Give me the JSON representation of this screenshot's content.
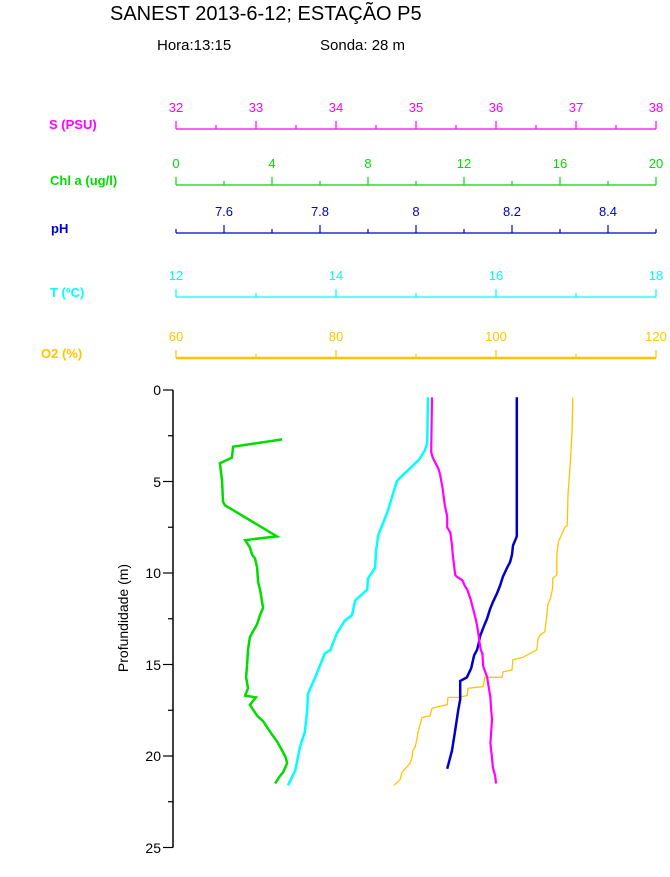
{
  "header": {
    "title": "SANEST 2013-6-12; ESTAÇÃO P5",
    "time": "Hora:13:15",
    "sounding": "Sonda: 28 m"
  },
  "chart_data": {
    "type": "line",
    "title": "SANEST 2013-6-12; ESTAÇÃO P5",
    "subtitle_time": "Hora:13:15",
    "subtitle_sounding": "Sonda: 28 m",
    "orientation": "vertical-depth-profile",
    "grid": false,
    "y_axis": {
      "label": "Profundidade (m)",
      "min": 0,
      "max": 25,
      "major_tick": 5,
      "minor_tick": 2.5,
      "ticks": [
        0,
        5,
        10,
        15,
        20,
        25
      ],
      "direction": "down",
      "color": "#000000"
    },
    "x_axes": [
      {
        "id": "S",
        "label": "S (PSU)",
        "color": "#FF00FF",
        "min": 32,
        "max": 38,
        "major_tick": 1,
        "minor_tick": 0.5,
        "ticks": [
          32,
          33,
          34,
          35,
          36,
          37,
          38
        ]
      },
      {
        "id": "Chl",
        "label": "Chl a (ug/l)",
        "color": "#00DC00",
        "min": 0,
        "max": 20,
        "major_tick": 4,
        "minor_tick": 2,
        "ticks": [
          0,
          4,
          8,
          12,
          16,
          20
        ]
      },
      {
        "id": "pH",
        "label": "pH",
        "color": "#0000CD",
        "min": 7.5,
        "max": 8.5,
        "major_tick": 0.2,
        "minor_tick": 0.1,
        "ticks": [
          7.6,
          7.8,
          8,
          8.2,
          8.4
        ]
      },
      {
        "id": "T",
        "label": "T (ºC)",
        "color": "#00FFFF",
        "min": 12,
        "max": 18,
        "major_tick": 2,
        "minor_tick": 1,
        "ticks": [
          12,
          14,
          16,
          18
        ]
      },
      {
        "id": "O2",
        "label": "O2 (%)",
        "color": "#FFC400",
        "min": 60,
        "max": 120,
        "major_tick": 20,
        "minor_tick": 10,
        "ticks": [
          60,
          80,
          100,
          120
        ]
      }
    ],
    "series": [
      {
        "name": "S (PSU)",
        "axis": "S",
        "color": "#FF00FF",
        "points": [
          [
            35.2,
            0.4
          ],
          [
            35.19,
            3.4
          ],
          [
            35.21,
            3.7
          ],
          [
            35.28,
            4.3
          ],
          [
            35.3,
            4.6
          ],
          [
            35.33,
            5.3
          ],
          [
            35.36,
            6.3
          ],
          [
            35.39,
            6.9
          ],
          [
            35.39,
            7.5
          ],
          [
            35.43,
            7.8
          ],
          [
            35.45,
            8.5
          ],
          [
            35.46,
            9.0
          ],
          [
            35.49,
            10.1
          ],
          [
            35.51,
            10.2
          ],
          [
            35.58,
            10.4
          ],
          [
            35.61,
            10.7
          ],
          [
            35.64,
            10.9
          ],
          [
            35.68,
            11.4
          ],
          [
            35.71,
            11.9
          ],
          [
            35.74,
            12.4
          ],
          [
            35.76,
            12.8
          ],
          [
            35.78,
            13.3
          ],
          [
            35.79,
            13.7
          ],
          [
            35.81,
            14.2
          ],
          [
            35.83,
            14.4
          ],
          [
            35.84,
            15.1
          ],
          [
            35.89,
            15.7
          ],
          [
            35.9,
            16.0
          ],
          [
            35.93,
            16.8
          ],
          [
            35.94,
            17.5
          ],
          [
            35.95,
            18.0
          ],
          [
            35.93,
            19.3
          ],
          [
            35.95,
            20.1
          ],
          [
            35.96,
            20.6
          ],
          [
            35.99,
            21.1
          ],
          [
            36.0,
            21.5
          ]
        ]
      },
      {
        "name": "Chl a (ug/l)",
        "axis": "Chl",
        "color": "#00DC00",
        "points": [
          [
            4.42,
            2.7
          ],
          [
            2.38,
            3.1
          ],
          [
            2.33,
            3.7
          ],
          [
            1.83,
            4.0
          ],
          [
            1.92,
            5.0
          ],
          [
            1.96,
            6.1
          ],
          [
            2.04,
            6.3
          ],
          [
            4.21,
            8.0
          ],
          [
            2.88,
            8.2
          ],
          [
            3.08,
            8.6
          ],
          [
            3.17,
            9.0
          ],
          [
            3.29,
            9.2
          ],
          [
            3.38,
            9.7
          ],
          [
            3.42,
            10.5
          ],
          [
            3.5,
            10.9
          ],
          [
            3.63,
            11.9
          ],
          [
            3.5,
            12.3
          ],
          [
            3.38,
            12.8
          ],
          [
            3.08,
            13.5
          ],
          [
            3.0,
            14.2
          ],
          [
            2.96,
            15.1
          ],
          [
            2.92,
            15.7
          ],
          [
            3.0,
            16.3
          ],
          [
            2.88,
            16.7
          ],
          [
            3.33,
            16.8
          ],
          [
            3.08,
            17.2
          ],
          [
            3.38,
            17.8
          ],
          [
            3.63,
            18.1
          ],
          [
            3.83,
            18.5
          ],
          [
            4.04,
            18.9
          ],
          [
            4.21,
            19.2
          ],
          [
            4.42,
            19.7
          ],
          [
            4.58,
            20.1
          ],
          [
            4.63,
            20.4
          ],
          [
            4.46,
            20.9
          ],
          [
            4.33,
            21.1
          ],
          [
            4.13,
            21.5
          ]
        ]
      },
      {
        "name": "pH",
        "axis": "pH",
        "color": "#0000CD",
        "points": [
          [
            8.21,
            0.4
          ],
          [
            8.21,
            8.0
          ],
          [
            8.202,
            8.5
          ],
          [
            8.2,
            9.0
          ],
          [
            8.196,
            9.4
          ],
          [
            8.19,
            9.7
          ],
          [
            8.181,
            10.2
          ],
          [
            8.175,
            10.7
          ],
          [
            8.169,
            11.1
          ],
          [
            8.16,
            11.6
          ],
          [
            8.154,
            12.0
          ],
          [
            8.148,
            12.5
          ],
          [
            8.14,
            13.0
          ],
          [
            8.133,
            13.5
          ],
          [
            8.131,
            13.8
          ],
          [
            8.127,
            14.2
          ],
          [
            8.121,
            14.5
          ],
          [
            8.115,
            15.2
          ],
          [
            8.106,
            15.7
          ],
          [
            8.092,
            15.9
          ],
          [
            8.092,
            16.9
          ],
          [
            8.088,
            17.5
          ],
          [
            8.081,
            18.7
          ],
          [
            8.075,
            19.7
          ],
          [
            8.065,
            20.7
          ]
        ]
      },
      {
        "name": "T (ºC)",
        "axis": "T",
        "color": "#00FFFF",
        "points": [
          [
            15.15,
            0.4
          ],
          [
            15.14,
            2.9
          ],
          [
            15.11,
            3.3
          ],
          [
            15.04,
            3.8
          ],
          [
            14.8,
            4.8
          ],
          [
            14.76,
            5.0
          ],
          [
            14.64,
            6.7
          ],
          [
            14.53,
            7.9
          ],
          [
            14.5,
            8.8
          ],
          [
            14.49,
            9.7
          ],
          [
            14.4,
            10.3
          ],
          [
            14.39,
            10.9
          ],
          [
            14.24,
            11.5
          ],
          [
            14.2,
            12.3
          ],
          [
            14.11,
            12.6
          ],
          [
            14.01,
            13.3
          ],
          [
            13.93,
            14.2
          ],
          [
            13.86,
            14.4
          ],
          [
            13.74,
            15.7
          ],
          [
            13.65,
            16.6
          ],
          [
            13.64,
            17.5
          ],
          [
            13.61,
            18.7
          ],
          [
            13.55,
            19.5
          ],
          [
            13.49,
            20.8
          ],
          [
            13.4,
            21.6
          ]
        ]
      },
      {
        "name": "O2 (%)",
        "axis": "O2",
        "color": "#FFC400",
        "points": [
          [
            109.6,
            0.4
          ],
          [
            109.5,
            2.3
          ],
          [
            109.3,
            3.9
          ],
          [
            109.0,
            5.7
          ],
          [
            108.9,
            7.4
          ],
          [
            108.6,
            7.5
          ],
          [
            108.0,
            8.1
          ],
          [
            107.8,
            8.3
          ],
          [
            107.6,
            9.0
          ],
          [
            107.6,
            10.1
          ],
          [
            107.1,
            10.3
          ],
          [
            107.1,
            10.7
          ],
          [
            107.0,
            11.0
          ],
          [
            106.8,
            11.4
          ],
          [
            106.5,
            11.7
          ],
          [
            106.4,
            12.1
          ],
          [
            106.25,
            12.7
          ],
          [
            106.1,
            13.2
          ],
          [
            105.5,
            13.4
          ],
          [
            105.25,
            13.6
          ],
          [
            105.1,
            14.2
          ],
          [
            104.6,
            14.3
          ],
          [
            104.25,
            14.4
          ],
          [
            103.4,
            14.6
          ],
          [
            102.1,
            14.75
          ],
          [
            102.0,
            15.3
          ],
          [
            100.9,
            15.4
          ],
          [
            100.75,
            15.7
          ],
          [
            99.6,
            15.7
          ],
          [
            98.6,
            15.7
          ],
          [
            98.4,
            16.2
          ],
          [
            96.5,
            16.3
          ],
          [
            96.4,
            16.7
          ],
          [
            95.25,
            16.8
          ],
          [
            94.0,
            16.8
          ],
          [
            93.9,
            17.2
          ],
          [
            92.75,
            17.3
          ],
          [
            92.0,
            17.4
          ],
          [
            91.75,
            17.8
          ],
          [
            90.75,
            17.9
          ],
          [
            90.5,
            18.3
          ],
          [
            90.25,
            18.7
          ],
          [
            90.1,
            19.1
          ],
          [
            89.9,
            19.5
          ],
          [
            89.6,
            19.7
          ],
          [
            89.5,
            20.1
          ],
          [
            89.25,
            20.4
          ],
          [
            88.25,
            20.9
          ],
          [
            88.0,
            21.3
          ],
          [
            87.25,
            21.6
          ]
        ]
      }
    ]
  }
}
